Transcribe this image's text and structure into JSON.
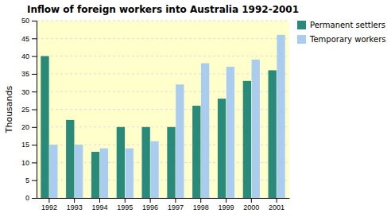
{
  "chart_data": {
    "type": "bar",
    "title": "Inflow of foreign workers into Australia 1992-2001",
    "categories": [
      "1992",
      "1993",
      "1994",
      "1995",
      "1996",
      "1997",
      "1998",
      "1999",
      "2000",
      "2001"
    ],
    "series": [
      {
        "name": "Permanent settlers",
        "color": "#2a8a7a",
        "values": [
          40,
          22,
          13,
          20,
          20,
          20,
          26,
          28,
          33,
          36
        ]
      },
      {
        "name": "Temporary workers",
        "color": "#aaccee",
        "values": [
          15,
          15,
          14,
          14,
          16,
          32,
          38,
          37,
          39,
          46
        ]
      }
    ],
    "ylabel": "Thousands",
    "ylim": [
      0,
      50
    ],
    "yticks": [
      0,
      5,
      10,
      15,
      20,
      25,
      30,
      35,
      40,
      45,
      50
    ],
    "grid": true,
    "legend": "right"
  }
}
